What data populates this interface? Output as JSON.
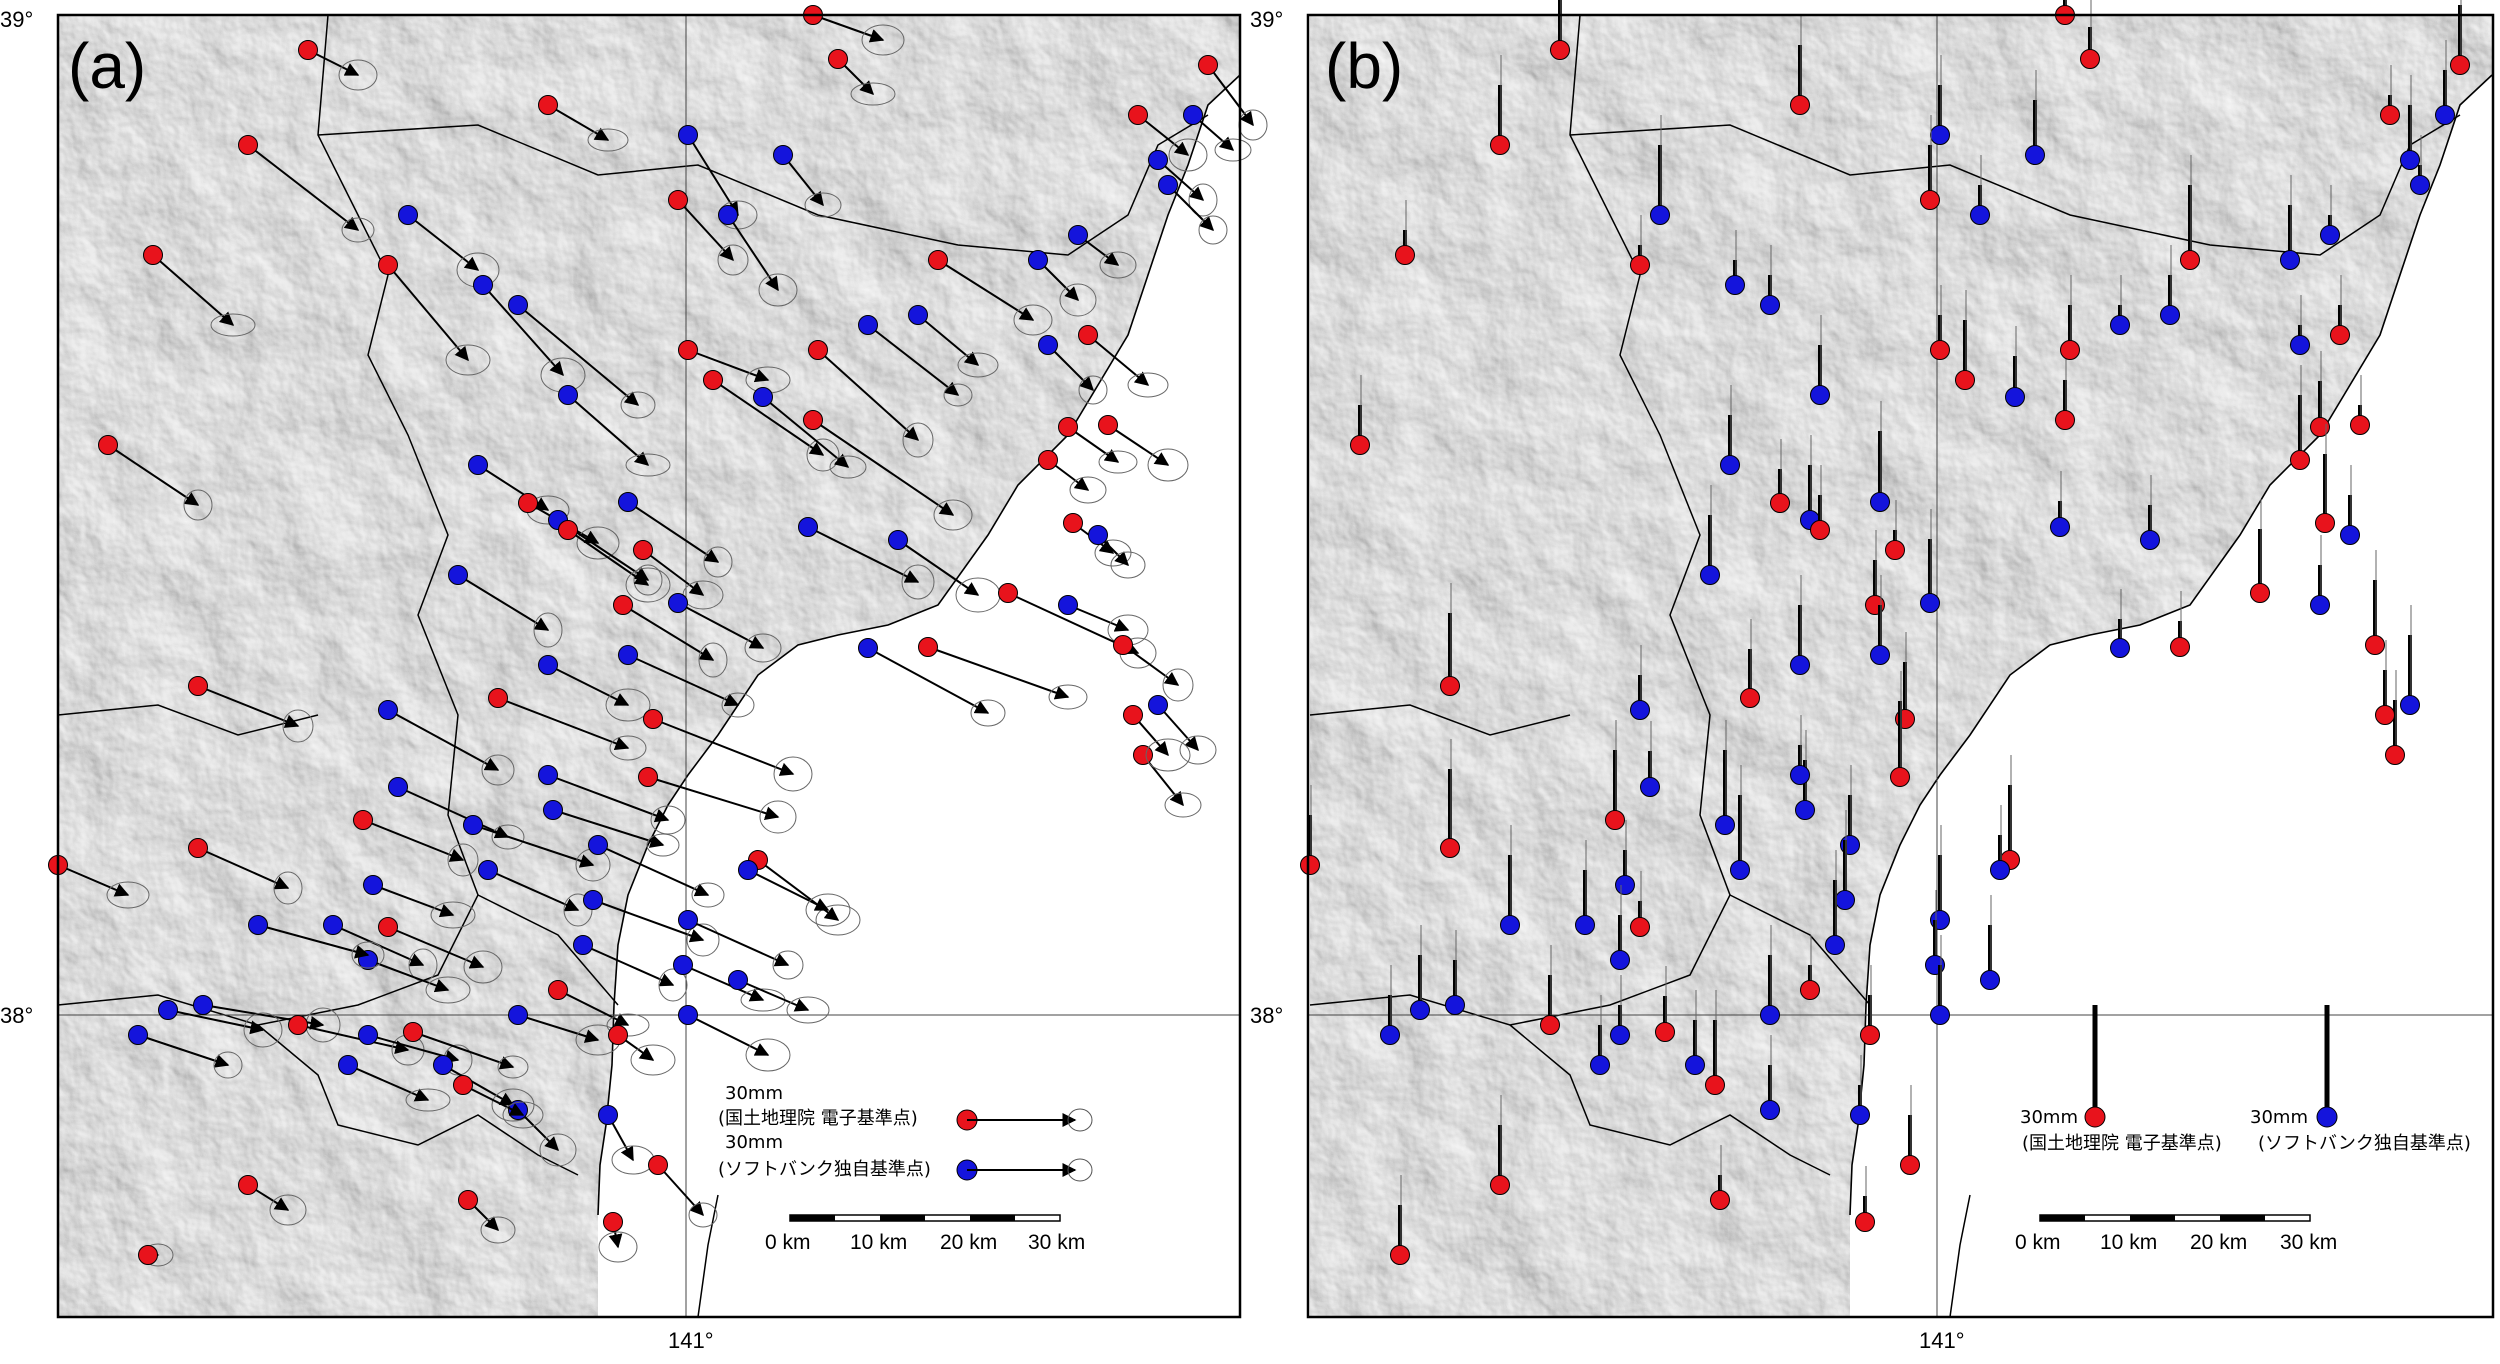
{
  "latitude_labels": {
    "top": "39°",
    "middle": "38°"
  },
  "longitude_label": "141°",
  "panels": {
    "a": {
      "label": "(a)"
    },
    "b": {
      "label": "(b)"
    }
  },
  "legend": {
    "scale_value": "30mm",
    "gsi_label": "(国土地理院 電子基準点)",
    "softbank_label": "(ソフトバンク独自基準点)"
  },
  "scale_bar": {
    "ticks": [
      "0 km",
      "10 km",
      "20 km",
      "30 km"
    ]
  },
  "colors": {
    "gsi_station": "#e8131c",
    "softbank_station": "#1414dc",
    "terrain_light": "#f4f4f4",
    "terrain_dark": "#b8b8b8",
    "sea": "#ffffff",
    "boundary": "#000000"
  },
  "icons": {
    "gsi_marker": "red-circle",
    "softbank_marker": "blue-circle",
    "vector": "arrow"
  }
}
